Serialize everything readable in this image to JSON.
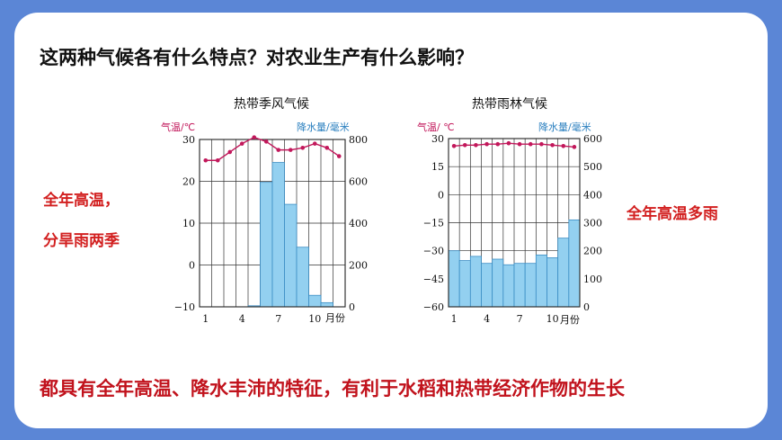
{
  "question": "这两种气候各有什么特点？对农业生产有什么影响？",
  "notes": {
    "left_line1": "全年高温，",
    "left_line2": "分旱雨两季",
    "right": "全年高温多雨"
  },
  "conclusion": "都具有全年高温、降水丰沛的特征，有利于水稻和热带经济作物的生长",
  "colors": {
    "temperature": "#c2185b",
    "precipitation_fill": "#93d0f0",
    "precipitation_text": "#2a7fbf"
  },
  "chart_data": [
    {
      "type": "bar+line",
      "title": "热带季风气候",
      "ylabel_left": "气温/℃",
      "ylabel_right": "降水量/毫米",
      "xlabel": "月份",
      "x": [
        1,
        2,
        3,
        4,
        5,
        6,
        7,
        8,
        9,
        10,
        11,
        12
      ],
      "x_tick_labels": [
        "1",
        "4",
        "7",
        "10"
      ],
      "x_tick_months": [
        1,
        4,
        7,
        10
      ],
      "temperature_ticks": [
        "30",
        "20",
        "10",
        "0",
        "−10"
      ],
      "precipitation_ticks": [
        "800",
        "600",
        "400",
        "200",
        "0"
      ],
      "ylim_temperature": [
        -10,
        30
      ],
      "ylim_precipitation": [
        0,
        800
      ],
      "grid": true,
      "series": [
        {
          "name": "气温",
          "type": "line",
          "values": [
            25,
            25,
            27,
            29,
            30.5,
            29.5,
            27.5,
            27.5,
            28,
            29,
            28,
            26
          ]
        },
        {
          "name": "降水量",
          "type": "bar",
          "values": [
            0,
            0,
            0,
            0,
            5,
            595,
            690,
            490,
            285,
            55,
            20,
            0
          ]
        }
      ]
    },
    {
      "type": "bar+line",
      "title": "热带雨林气候",
      "ylabel_left": "气温/ ℃",
      "ylabel_right": "降水量/毫米",
      "xlabel": "月份",
      "x": [
        1,
        2,
        3,
        4,
        5,
        6,
        7,
        8,
        9,
        10,
        11,
        12
      ],
      "x_tick_labels": [
        "1",
        "4",
        "7",
        "10"
      ],
      "x_tick_months": [
        1,
        4,
        7,
        10
      ],
      "temperature_ticks": [
        "30",
        "15",
        "0",
        "−15",
        "−30",
        "−45",
        "−60"
      ],
      "precipitation_ticks": [
        "600",
        "500",
        "400",
        "300",
        "200",
        "100",
        "0"
      ],
      "ylim_temperature": [
        -60,
        30
      ],
      "ylim_precipitation": [
        0,
        600
      ],
      "grid": true,
      "series": [
        {
          "name": "气温",
          "type": "line",
          "values": [
            26,
            26.5,
            26.5,
            27,
            27,
            27.5,
            27,
            27,
            27,
            26.5,
            26,
            25.5
          ]
        },
        {
          "name": "降水量",
          "type": "bar",
          "values": [
            200,
            165,
            180,
            155,
            170,
            150,
            155,
            155,
            185,
            175,
            245,
            310
          ]
        }
      ]
    }
  ]
}
